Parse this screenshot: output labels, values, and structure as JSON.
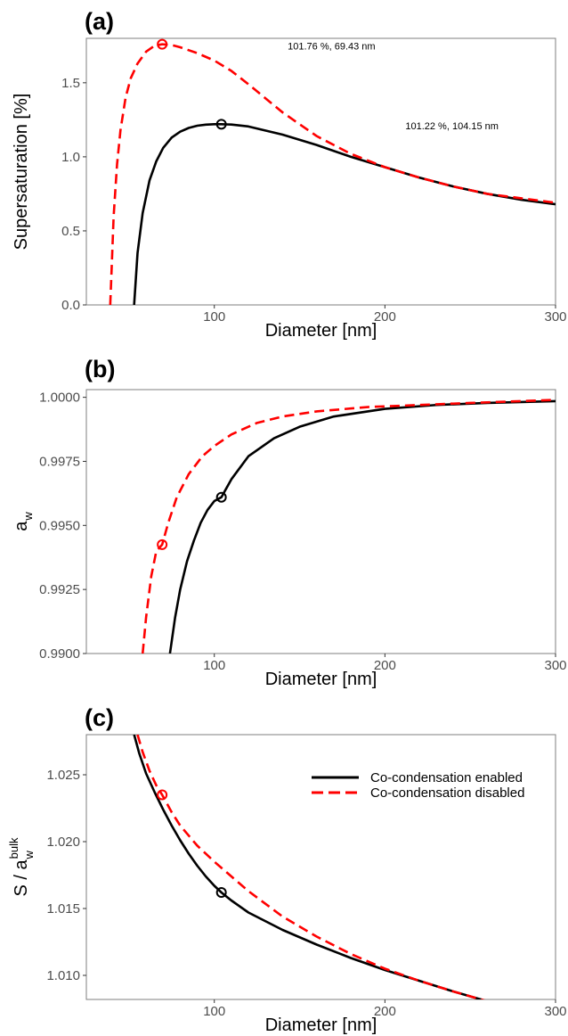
{
  "chart_data": [
    {
      "type": "line",
      "panel_label": "(a)",
      "xlabel": "Diameter [nm]",
      "ylabel": "Supersaturation [%]",
      "xlim": [
        25,
        300
      ],
      "ylim": [
        0,
        1.8
      ],
      "xticks": [
        100,
        200,
        300
      ],
      "yticks": [
        0.0,
        0.5,
        1.0,
        1.5
      ],
      "ytick_labels": [
        "0.0",
        "0.5",
        "1.0",
        "1.5"
      ],
      "series": [
        {
          "color": "#000000",
          "dash": "solid",
          "x": [
            53,
            55,
            58,
            62,
            66,
            70,
            75,
            80,
            85,
            90,
            95,
            100,
            104.15,
            110,
            120,
            140,
            160,
            180,
            200,
            220,
            240,
            260,
            280,
            300
          ],
          "y": [
            0.0,
            0.35,
            0.62,
            0.84,
            0.97,
            1.06,
            1.13,
            1.17,
            1.195,
            1.21,
            1.217,
            1.22,
            1.22,
            1.218,
            1.205,
            1.15,
            1.08,
            1.0,
            0.93,
            0.86,
            0.8,
            0.75,
            0.71,
            0.68
          ],
          "marker": {
            "x": 104.15,
            "y": 1.22
          }
        },
        {
          "color": "#ff0000",
          "dash": "dashed",
          "x": [
            39,
            41,
            43,
            45,
            48,
            51,
            55,
            60,
            65,
            69.43,
            75,
            80,
            90,
            100,
            110,
            120,
            140,
            160,
            180,
            200,
            220,
            240,
            260,
            280,
            300
          ],
          "y": [
            0.0,
            0.6,
            0.95,
            1.18,
            1.4,
            1.53,
            1.63,
            1.71,
            1.75,
            1.76,
            1.755,
            1.74,
            1.7,
            1.65,
            1.58,
            1.49,
            1.3,
            1.14,
            1.02,
            0.93,
            0.86,
            0.8,
            0.75,
            0.72,
            0.69
          ],
          "marker": {
            "x": 69.43,
            "y": 1.76
          }
        }
      ],
      "annotations": [
        {
          "text": "101.76 %, 69.43 nm",
          "x": 143,
          "y": 1.75
        },
        {
          "text": "101.22 %, 104.15 nm",
          "x": 212,
          "y": 1.21
        }
      ]
    },
    {
      "type": "line",
      "panel_label": "(b)",
      "xlabel": "Diameter [nm]",
      "ylabel": "a",
      "ylabel_sub": "w",
      "xlim": [
        25,
        300
      ],
      "ylim": [
        0.99,
        1.0003
      ],
      "xticks": [
        100,
        200,
        300
      ],
      "yticks": [
        0.99,
        0.9925,
        0.995,
        0.9975,
        1.0
      ],
      "ytick_labels": [
        "0.9900",
        "0.9925",
        "0.9950",
        "0.9975",
        "1.0000"
      ],
      "series": [
        {
          "color": "#000000",
          "dash": "solid",
          "x": [
            74,
            77,
            80,
            84,
            88,
            92,
            96,
            100,
            104.15,
            110,
            120,
            135,
            150,
            170,
            200,
            230,
            260,
            300
          ],
          "y": [
            0.99,
            0.9914,
            0.9925,
            0.9936,
            0.9944,
            0.9951,
            0.9956,
            0.99595,
            0.9961,
            0.9968,
            0.9977,
            0.9984,
            0.99885,
            0.99925,
            0.99955,
            0.9997,
            0.99978,
            0.99985
          ],
          "marker": {
            "x": 104.15,
            "y": 0.9961
          }
        },
        {
          "color": "#ff0000",
          "dash": "dashed",
          "x": [
            58,
            60,
            63,
            66,
            69.43,
            73,
            78,
            85,
            93,
            100,
            110,
            125,
            140,
            160,
            190,
            220,
            250,
            300
          ],
          "y": [
            0.99,
            0.9914,
            0.993,
            0.994,
            0.99425,
            0.9951,
            0.9961,
            0.997,
            0.9977,
            0.9981,
            0.99855,
            0.999,
            0.99925,
            0.99945,
            0.99962,
            0.9997,
            0.99978,
            0.9999
          ],
          "marker": {
            "x": 69.43,
            "y": 0.99425
          }
        }
      ]
    },
    {
      "type": "line",
      "panel_label": "(c)",
      "xlabel": "Diameter [nm]",
      "ylabel": "S / a",
      "ylabel_sub": "w",
      "ylabel_sup": "bulk",
      "xlim": [
        25,
        300
      ],
      "ylim": [
        1.0082,
        1.028
      ],
      "xticks": [
        100,
        200,
        300
      ],
      "yticks": [
        1.01,
        1.015,
        1.02,
        1.025
      ],
      "ytick_labels": [
        "1.010",
        "1.015",
        "1.020",
        "1.025"
      ],
      "legend_position": "top-right",
      "series": [
        {
          "name": "Co-condensation enabled",
          "color": "#000000",
          "dash": "solid",
          "x": [
            53,
            56,
            60,
            65,
            70,
            75,
            80,
            85,
            90,
            95,
            100,
            104.15,
            110,
            120,
            140,
            160,
            180,
            200,
            220,
            240,
            259
          ],
          "y": [
            1.028,
            1.0266,
            1.0251,
            1.0237,
            1.0224,
            1.0212,
            1.0201,
            1.0191,
            1.0182,
            1.0174,
            1.0167,
            1.0162,
            1.0156,
            1.0147,
            1.0134,
            1.0123,
            1.0113,
            1.0104,
            1.0096,
            1.0088,
            1.0081
          ],
          "marker": {
            "x": 104.15,
            "y": 1.0162
          }
        },
        {
          "name": "Co-condensation disabled",
          "color": "#ff0000",
          "dash": "dashed",
          "x": [
            55,
            58,
            62,
            66,
            69.43,
            75,
            80,
            90,
            100,
            110,
            120,
            140,
            160,
            180,
            200,
            220,
            240,
            259
          ],
          "y": [
            1.028,
            1.0267,
            1.0253,
            1.0242,
            1.0235,
            1.0222,
            1.0212,
            1.0197,
            1.0185,
            1.0174,
            1.0163,
            1.0144,
            1.0129,
            1.0116,
            1.0105,
            1.0096,
            1.0088,
            1.0081
          ],
          "marker": {
            "x": 69.43,
            "y": 1.0235
          }
        }
      ]
    }
  ]
}
